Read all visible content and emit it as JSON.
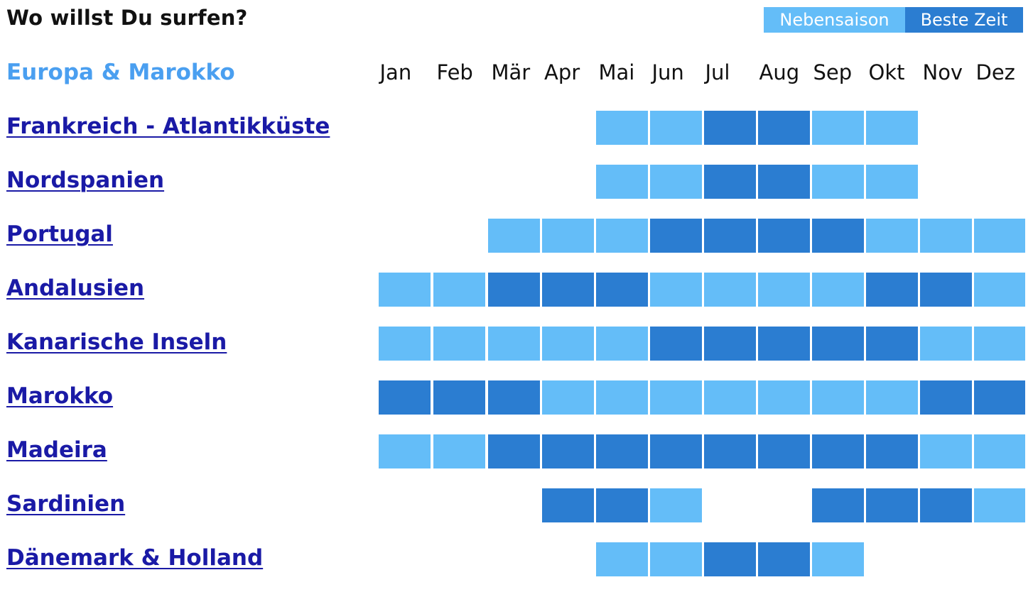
{
  "header": {
    "title": "Wo willst Du surfen?"
  },
  "legend": {
    "off_label": "Nebensaison",
    "best_label": "Beste Zeit"
  },
  "colors": {
    "off": "#64bdf8",
    "best": "#2b7dd1",
    "region": "#4a9ff0",
    "link": "#1a1aa6"
  },
  "table": {
    "region_label": "Europa & Marokko",
    "months": [
      "Jan",
      "Feb",
      "Mär",
      "Apr",
      "Mai",
      "Jun",
      "Jul",
      "Aug",
      "Sep",
      "Okt",
      "Nov",
      "Dez"
    ],
    "rows": [
      {
        "label": "Frankreich - Atlantikküste",
        "seasons": [
          0,
          0,
          0,
          0,
          1,
          1,
          2,
          2,
          1,
          1,
          0,
          0
        ]
      },
      {
        "label": "Nordspanien",
        "seasons": [
          0,
          0,
          0,
          0,
          1,
          1,
          2,
          2,
          1,
          1,
          0,
          0
        ]
      },
      {
        "label": "Portugal",
        "seasons": [
          0,
          0,
          1,
          1,
          1,
          2,
          2,
          2,
          2,
          1,
          1,
          1
        ]
      },
      {
        "label": "Andalusien",
        "seasons": [
          1,
          1,
          2,
          2,
          2,
          1,
          1,
          1,
          1,
          2,
          2,
          1
        ]
      },
      {
        "label": "Kanarische Inseln",
        "seasons": [
          1,
          1,
          1,
          1,
          1,
          2,
          2,
          2,
          2,
          2,
          1,
          1
        ]
      },
      {
        "label": "Marokko",
        "seasons": [
          2,
          2,
          2,
          1,
          1,
          1,
          1,
          1,
          1,
          1,
          2,
          2
        ]
      },
      {
        "label": "Madeira",
        "seasons": [
          1,
          1,
          2,
          2,
          2,
          2,
          2,
          2,
          2,
          2,
          1,
          1
        ]
      },
      {
        "label": "Sardinien",
        "seasons": [
          0,
          0,
          0,
          2,
          2,
          1,
          0,
          0,
          2,
          2,
          2,
          1
        ]
      },
      {
        "label": "Dänemark & Holland",
        "seasons": [
          0,
          0,
          0,
          0,
          1,
          1,
          2,
          2,
          1,
          0,
          0,
          0
        ]
      }
    ]
  }
}
